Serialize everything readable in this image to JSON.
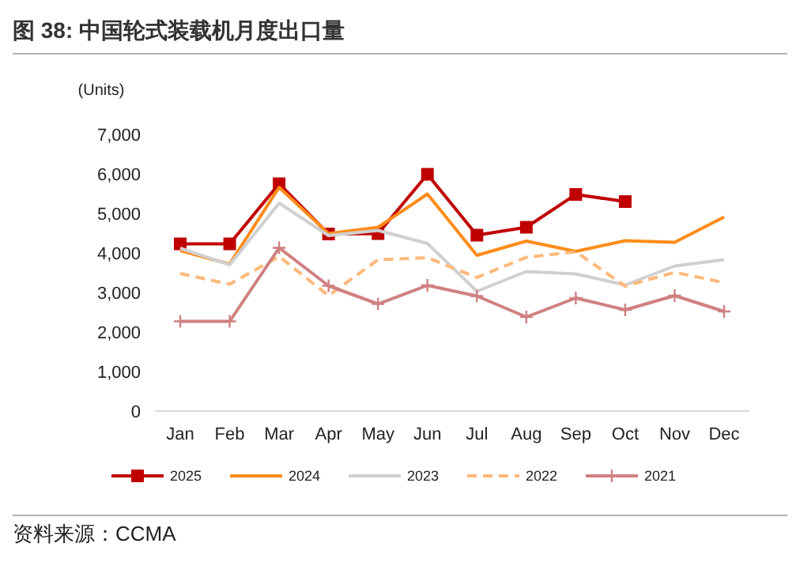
{
  "chart_data": {
    "type": "line",
    "title": "图 38: 中国轮式装载机月度出口量",
    "ylabel": "(Units)",
    "annotations": [
      "资料来源：CCMA"
    ],
    "categories": [
      "Jan",
      "Feb",
      "Mar",
      "Apr",
      "May",
      "Jun",
      "Jul",
      "Aug",
      "Sep",
      "Oct",
      "Nov",
      "Dec"
    ],
    "ylim": [
      0,
      7000
    ],
    "yticks": [
      {
        "value": 0,
        "label": "0"
      },
      {
        "value": 1000,
        "label": "1,000"
      },
      {
        "value": 2000,
        "label": "2,000"
      },
      {
        "value": 3000,
        "label": "3,000"
      },
      {
        "value": 4000,
        "label": "4,000"
      },
      {
        "value": 5000,
        "label": "5,000"
      },
      {
        "value": 6000,
        "label": "6,000"
      },
      {
        "value": 7000,
        "label": "7,000"
      }
    ],
    "grid": false,
    "legend": "bottom",
    "series": [
      {
        "name": "2025",
        "color": "#c00000",
        "marker": "square",
        "line_style": "solid",
        "values": [
          4230,
          4230,
          5750,
          4480,
          4490,
          5990,
          4450,
          4650,
          5480,
          5300,
          null,
          null
        ]
      },
      {
        "name": "2024",
        "color": "#ff8c1a",
        "marker": "none",
        "line_style": "solid",
        "values": [
          4060,
          3720,
          5660,
          4490,
          4650,
          5490,
          3940,
          4300,
          4040,
          4310,
          4270,
          4910
        ]
      },
      {
        "name": "2023",
        "color": "#d0d0d0",
        "marker": "none",
        "line_style": "solid",
        "values": [
          4120,
          3700,
          5260,
          4440,
          4570,
          4240,
          3030,
          3530,
          3470,
          3190,
          3670,
          3830
        ]
      },
      {
        "name": "2022",
        "color": "#ffb878",
        "marker": "none",
        "line_style": "dashed",
        "values": [
          3480,
          3210,
          3910,
          2920,
          3830,
          3880,
          3380,
          3890,
          4030,
          3160,
          3510,
          3250
        ]
      },
      {
        "name": "2021",
        "color": "#d08080",
        "marker": "cross",
        "line_style": "solid",
        "values": [
          2270,
          2270,
          4130,
          3170,
          2710,
          3180,
          2910,
          2380,
          2860,
          2560,
          2920,
          2520
        ]
      }
    ]
  }
}
